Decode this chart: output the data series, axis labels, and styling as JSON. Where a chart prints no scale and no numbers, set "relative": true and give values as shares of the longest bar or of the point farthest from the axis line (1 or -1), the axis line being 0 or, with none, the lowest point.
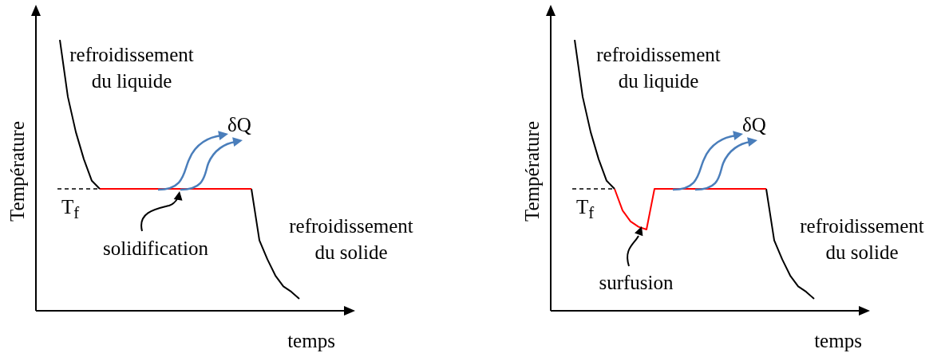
{
  "chart_data": [
    {
      "type": "line",
      "relative": true,
      "xlabel": "temps",
      "ylabel": "Température",
      "categories": [
        null,
        null,
        null,
        null,
        null,
        null,
        null,
        null,
        null,
        null,
        null,
        null,
        null,
        null,
        null,
        null,
        null,
        null,
        null,
        null,
        null,
        null,
        null,
        null,
        null,
        null,
        null,
        null,
        null,
        null,
        null,
        null,
        null,
        null,
        null,
        null,
        null,
        null,
        null,
        null,
        null
      ],
      "series": [
        {
          "color": "#000000",
          "values": [
            null,
            null,
            null,
            1,
            0.79,
            0.66,
            0.56,
            0.48,
            0.45,
            null,
            null,
            null,
            null,
            null,
            null,
            null,
            null,
            null,
            null,
            null,
            null,
            null,
            null,
            null,
            null,
            null,
            null,
            null,
            null,
            null,
            null,
            null,
            null,
            null,
            null,
            null,
            null,
            null,
            null,
            null,
            null
          ]
        },
        {
          "color": "#ff0000",
          "values": [
            null,
            null,
            null,
            null,
            null,
            null,
            null,
            null,
            0.45,
            0.45,
            0.45,
            0.45,
            0.45,
            0.45,
            0.45,
            0.45,
            0.45,
            0.45,
            0.45,
            0.45,
            0.45,
            0.45,
            0.45,
            0.45,
            0.45,
            0.45,
            0.45,
            0.45,
            null,
            null,
            null,
            null,
            null,
            null,
            null,
            null,
            null,
            null,
            null,
            null,
            null
          ]
        },
        {
          "color": "#000000",
          "values": [
            null,
            null,
            null,
            null,
            null,
            null,
            null,
            null,
            null,
            null,
            null,
            null,
            null,
            null,
            null,
            null,
            null,
            null,
            null,
            null,
            null,
            null,
            null,
            null,
            null,
            null,
            null,
            0.45,
            0.26,
            0.19,
            0.13,
            0.09,
            0.07,
            0.044,
            null,
            null,
            null,
            null,
            null,
            null,
            null
          ]
        }
      ],
      "ref_lines": [
        {
          "axis": "y",
          "value": 0.45,
          "label": "T$_{f}$",
          "color": "#000000",
          "line_style": "dashed"
        }
      ],
      "annotations": [
        "refroidissement du liquide",
        "δQ",
        "solidification",
        "refroidissement du solide"
      ]
    },
    {
      "type": "line",
      "relative": true,
      "xlabel": "temps",
      "ylabel": "Température",
      "categories": [
        null,
        null,
        null,
        null,
        null,
        null,
        null,
        null,
        null,
        null,
        null,
        null,
        null,
        null,
        null,
        null,
        null,
        null,
        null,
        null,
        null,
        null,
        null,
        null,
        null,
        null,
        null,
        null,
        null,
        null,
        null,
        null,
        null,
        null,
        null,
        null,
        null,
        null,
        null,
        null,
        null
      ],
      "series": [
        {
          "color": "#000000",
          "values": [
            null,
            null,
            null,
            1,
            0.79,
            0.66,
            0.56,
            0.48,
            0.45,
            null,
            null,
            null,
            null,
            null,
            null,
            null,
            null,
            null,
            null,
            null,
            null,
            null,
            null,
            null,
            null,
            null,
            null,
            null,
            null,
            null,
            null,
            null,
            null,
            null,
            null,
            null,
            null,
            null,
            null,
            null,
            null
          ]
        },
        {
          "color": "#ff0000",
          "values": [
            null,
            null,
            null,
            null,
            null,
            null,
            null,
            null,
            0.45,
            0.37,
            0.33,
            0.31,
            0.3,
            0.45,
            0.45,
            0.45,
            0.45,
            0.45,
            0.45,
            0.45,
            0.45,
            0.45,
            0.45,
            0.45,
            0.45,
            0.45,
            0.45,
            0.45,
            null,
            null,
            null,
            null,
            null,
            null,
            null,
            null,
            null,
            null,
            null,
            null,
            null
          ]
        },
        {
          "color": "#000000",
          "values": [
            null,
            null,
            null,
            null,
            null,
            null,
            null,
            null,
            null,
            null,
            null,
            null,
            null,
            null,
            null,
            null,
            null,
            null,
            null,
            null,
            null,
            null,
            null,
            null,
            null,
            null,
            null,
            0.45,
            0.26,
            0.19,
            0.13,
            0.09,
            0.07,
            0.044,
            null,
            null,
            null,
            null,
            null,
            null,
            null
          ]
        }
      ],
      "ref_lines": [
        {
          "axis": "y",
          "value": 0.45,
          "label": "T$_{f}$",
          "color": "#000000",
          "line_style": "dashed"
        }
      ],
      "annotations": [
        "refroidissement du liquide",
        "δQ",
        "surfusion",
        "refroidissement du solide"
      ]
    }
  ]
}
